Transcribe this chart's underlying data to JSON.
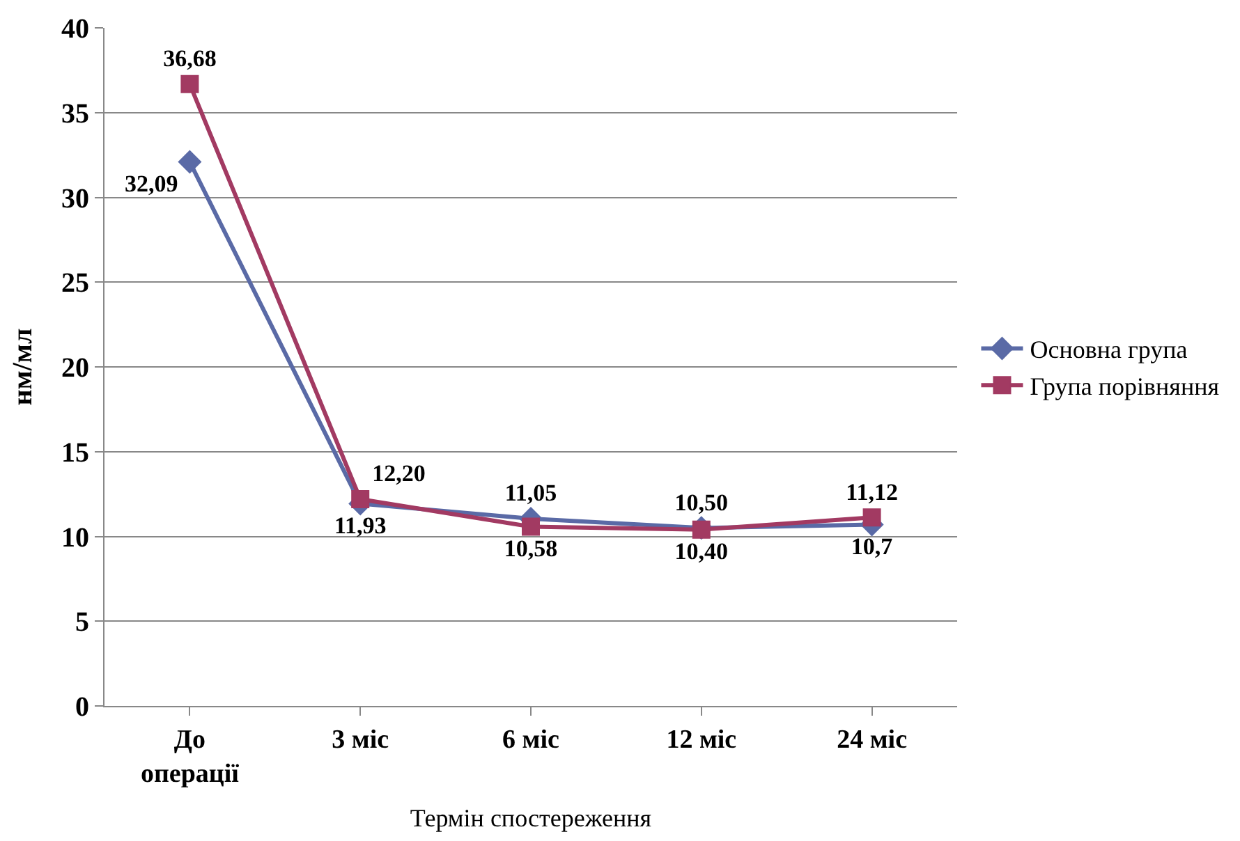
{
  "chart_data": {
    "type": "line",
    "xlabel": "Термін спостереження",
    "ylabel": "нм/мл",
    "categories": [
      "До операції",
      "3 міс",
      "6 міс",
      "12 міс",
      "24 міс"
    ],
    "series": [
      {
        "name": "Основна група",
        "color": "#5a6aa6",
        "marker": "diamond",
        "values": [
          32.09,
          11.93,
          11.05,
          10.5,
          10.7
        ],
        "value_labels": [
          "32,09",
          "11,93",
          "11,05",
          "10,50",
          "10,7"
        ]
      },
      {
        "name": "Група порівняння",
        "color": "#a23a62",
        "marker": "square",
        "values": [
          36.68,
          12.2,
          10.58,
          10.4,
          11.12
        ],
        "value_labels": [
          "36,68",
          "12,20",
          "10,58",
          "10,40",
          "11,12"
        ]
      }
    ],
    "ylim": [
      0,
      40
    ],
    "yticks": [
      0,
      5,
      10,
      15,
      20,
      25,
      30,
      35,
      40
    ],
    "grid": "y",
    "legend": "right",
    "line_style": "solid"
  }
}
